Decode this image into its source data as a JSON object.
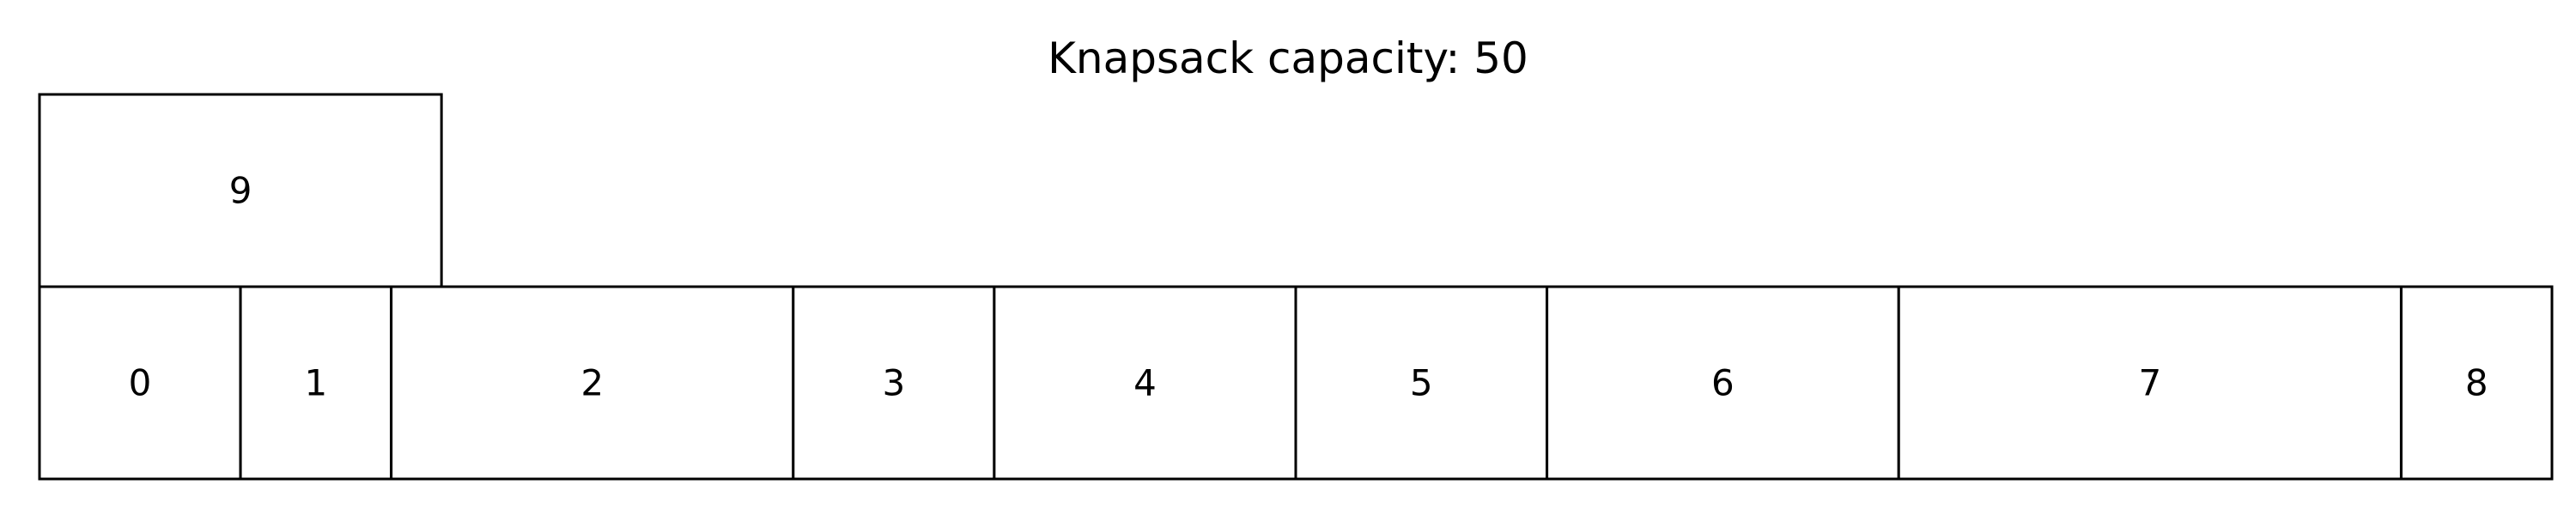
{
  "title": "Knapsack capacity: 50",
  "capacity": 50,
  "items": [
    {
      "label": "0",
      "weight": 4
    },
    {
      "label": "1",
      "weight": 3
    },
    {
      "label": "2",
      "weight": 8
    },
    {
      "label": "3",
      "weight": 4
    },
    {
      "label": "4",
      "weight": 6
    },
    {
      "label": "5",
      "weight": 5
    },
    {
      "label": "6",
      "weight": 7
    },
    {
      "label": "7",
      "weight": 10
    },
    {
      "label": "8",
      "weight": 3
    },
    {
      "label": "9",
      "weight": 8
    }
  ],
  "rows": [
    [
      "0",
      "1",
      "2",
      "3",
      "4",
      "5",
      "6",
      "7",
      "8"
    ],
    [
      "9"
    ]
  ]
}
